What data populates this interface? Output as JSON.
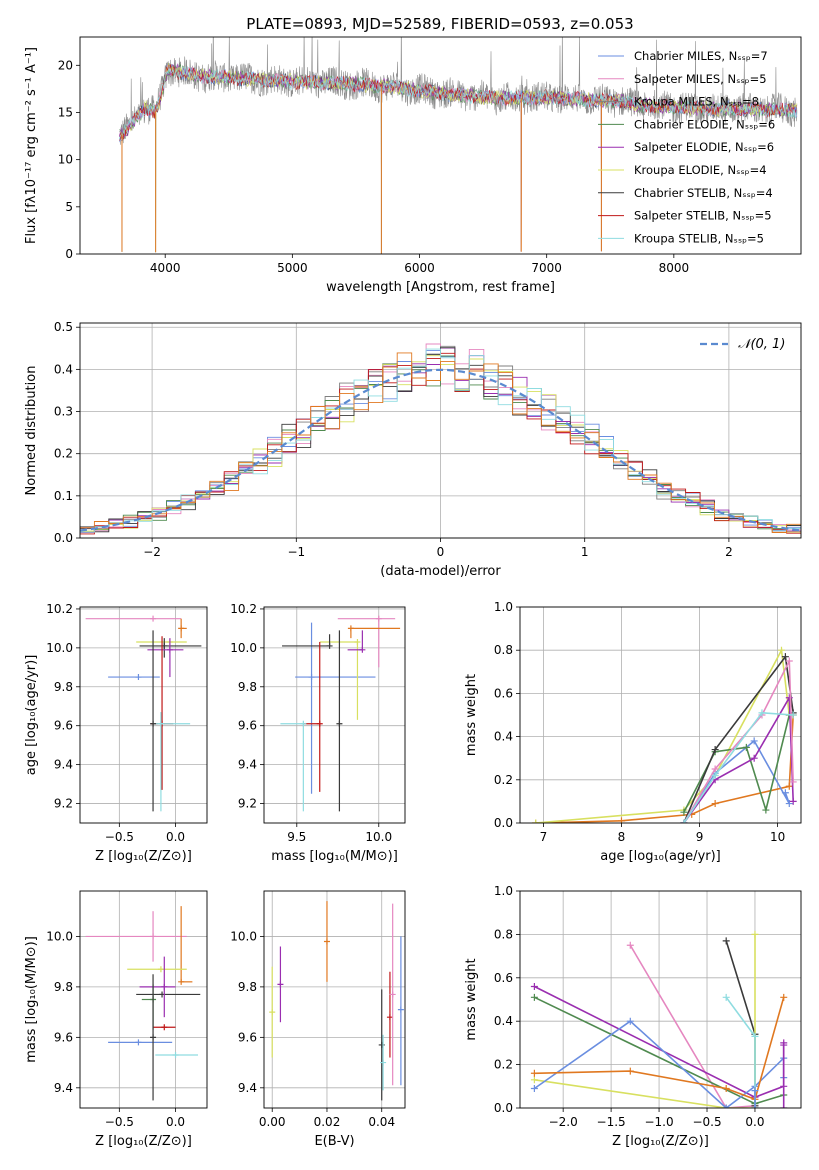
{
  "figure_title": "PLATE=0893, MJD=52589, FIBERID=0593, z=0.053",
  "colors": [
    "#6a8ee0",
    "#e587c0",
    "#7f7f7f",
    "#4f8a4f",
    "#9a2eb0",
    "#d8e060",
    "#3a3a3a",
    "#c01818",
    "#8fdce0",
    "#e07820",
    "#5a5a5a",
    "#3aa6b0"
  ],
  "chart_data": [
    {
      "id": "spectrum",
      "type": "line",
      "xlabel": "wavelength [Angstrom, rest frame]",
      "ylabel": "Flux [fλ10⁻¹⁷ erg cm⁻² s⁻¹ A⁻¹]",
      "xlim": [
        3330,
        9000
      ],
      "ylim": [
        0,
        23
      ],
      "xticks": [
        4000,
        5000,
        6000,
        7000,
        8000
      ],
      "yticks": [
        0,
        5,
        10,
        15,
        20
      ],
      "grid": false,
      "legend_position": "top-right",
      "continuum": {
        "x": [
          3640,
          3700,
          3780,
          3850,
          3920,
          3960,
          4020,
          4100,
          4300,
          4600,
          5000,
          5400,
          5800,
          6200,
          6600,
          7000,
          7400,
          7600,
          7700,
          7900,
          8100,
          8300,
          8500,
          8700,
          8970
        ],
        "y": [
          12.5,
          13.2,
          14.5,
          15.5,
          15.0,
          16.5,
          19.6,
          19.3,
          18.8,
          18.6,
          18.3,
          18.1,
          17.7,
          17.0,
          16.5,
          16.6,
          16.3,
          16.2,
          15.8,
          15.7,
          15.5,
          15.4,
          15.4,
          15.3,
          15.2
        ]
      },
      "absorption_lines": [
        {
          "x": 3660,
          "depth": 12.5
        },
        {
          "x": 3925,
          "depth": 15.0
        },
        {
          "x": 5700,
          "depth": 17.8
        },
        {
          "x": 6800,
          "depth": 16.3
        },
        {
          "x": 7430,
          "depth": 16.0
        }
      ],
      "series": [
        {
          "name": "Chabrier MILES, Nₛₛₚ=7",
          "color": "#6a8ee0"
        },
        {
          "name": "Salpeter MILES, Nₛₛₚ=5",
          "color": "#e587c0"
        },
        {
          "name": "Kroupa MILES, Nₛₛₚ=8",
          "color": "#7f7f7f"
        },
        {
          "name": "Chabrier ELODIE, Nₛₛₚ=6",
          "color": "#4f8a4f"
        },
        {
          "name": "Salpeter ELODIE, Nₛₛₚ=6",
          "color": "#9a2eb0"
        },
        {
          "name": "Kroupa ELODIE, Nₛₛₚ=4",
          "color": "#d8e060"
        },
        {
          "name": "Chabrier STELIB, Nₛₛₚ=4",
          "color": "#3a3a3a"
        },
        {
          "name": "Salpeter STELIB, Nₛₛₚ=5",
          "color": "#c01818"
        },
        {
          "name": "Kroupa STELIB, Nₛₛₚ=5",
          "color": "#8fdce0"
        }
      ]
    },
    {
      "id": "residual-histogram",
      "type": "histogram",
      "xlabel": "(data-model)/error",
      "ylabel": "Normed distribution",
      "xlim": [
        -2.5,
        2.5
      ],
      "ylim": [
        0,
        0.51
      ],
      "xticks": [
        -2,
        -1,
        0,
        1,
        2
      ],
      "yticks": [
        0.0,
        0.1,
        0.2,
        0.3,
        0.4,
        0.5
      ],
      "grid": true,
      "legend_position": "top-right",
      "legend": "𝒩(0, 1)",
      "bin_width": 0.1,
      "reference_curve": {
        "name": "N(0,1)",
        "mean": 0,
        "sigma": 1,
        "color": "#5a8ad0"
      },
      "histogram_colors": [
        "#6a8ee0",
        "#e587c0",
        "#7f7f7f",
        "#4f8a4f",
        "#9a2eb0",
        "#d8e060",
        "#3a3a3a",
        "#c01818",
        "#8fdce0",
        "#e07820"
      ]
    },
    {
      "id": "age-vs-Z",
      "type": "errorbar",
      "xlabel": "Z [log₁₀(Z/Z⊙)]",
      "ylabel": "age  [log₁₀(age/yr)]",
      "xlim": [
        -0.85,
        0.28
      ],
      "ylim": [
        9.1,
        10.21
      ],
      "xticks": [
        -0.5,
        0.0
      ],
      "yticks": [
        9.2,
        9.4,
        9.6,
        9.8,
        10.0,
        10.2
      ],
      "grid": true,
      "points": [
        {
          "x": -0.33,
          "y": 9.85,
          "xerr": [
            0.27,
            0.19
          ],
          "yerr": [
            0.0,
            0.0
          ],
          "color": "#6a8ee0"
        },
        {
          "x": -0.2,
          "y": 10.15,
          "xerr": [
            0.6,
            0.25
          ],
          "yerr": [
            0.0,
            0.0
          ],
          "color": "#e587c0"
        },
        {
          "x": 0.05,
          "y": 10.1,
          "xerr": [
            0.0,
            0.05
          ],
          "yerr": [
            0.05,
            0.05
          ],
          "color": "#e07820"
        },
        {
          "x": -0.05,
          "y": 10.03,
          "xerr": [
            0.3,
            0.15
          ],
          "yerr": [
            0.0,
            0.0
          ],
          "color": "#d8e060"
        },
        {
          "x": -0.1,
          "y": 10.01,
          "xerr": [
            0.22,
            0.33
          ],
          "yerr": [
            0.06,
            0.04
          ],
          "color": "#3a3a3a"
        },
        {
          "x": -0.05,
          "y": 9.99,
          "xerr": [
            0.2,
            0.12
          ],
          "yerr": [
            0.14,
            0.06
          ],
          "color": "#9a2eb0"
        },
        {
          "x": -0.12,
          "y": 9.61,
          "xerr": [
            0.1,
            0.1
          ],
          "yerr": [
            0.34,
            0.45
          ],
          "color": "#c01818"
        },
        {
          "x": -0.13,
          "y": 9.61,
          "xerr": [
            0.07,
            0.26
          ],
          "yerr": [
            0.45,
            0.06
          ],
          "color": "#8fdce0"
        },
        {
          "x": -0.2,
          "y": 9.61,
          "xerr": [
            0.0,
            0.0
          ],
          "yerr": [
            0.45,
            0.48
          ],
          "color": "#3a3a3a"
        }
      ]
    },
    {
      "id": "age-vs-mass",
      "type": "errorbar",
      "xlabel": "mass [log₁₀(M/M⊙)]",
      "ylabel": "",
      "xlim": [
        9.3,
        10.16
      ],
      "ylim": [
        9.1,
        10.21
      ],
      "xticks": [
        9.5,
        10.0
      ],
      "yticks": [
        9.2,
        9.4,
        9.6,
        9.8,
        10.0,
        10.2
      ],
      "grid": true,
      "points": [
        {
          "x": 9.59,
          "y": 9.85,
          "xerr": [
            0.1,
            0.39
          ],
          "yerr": [
            0.6,
            0.28
          ],
          "color": "#6a8ee0"
        },
        {
          "x": 10.0,
          "y": 10.15,
          "xerr": [
            0.25,
            0.1
          ],
          "yerr": [
            0.25,
            0.0
          ],
          "color": "#e587c0"
        },
        {
          "x": 9.83,
          "y": 10.1,
          "xerr": [
            0.0,
            0.3
          ],
          "yerr": [
            0.05,
            0.0
          ],
          "color": "#e07820"
        },
        {
          "x": 9.87,
          "y": 10.03,
          "xerr": [
            0.23,
            0.0
          ],
          "yerr": [
            0.4,
            0.0
          ],
          "color": "#d8e060"
        },
        {
          "x": 9.7,
          "y": 10.01,
          "xerr": [
            0.29,
            0.0
          ],
          "yerr": [
            0.0,
            0.06
          ],
          "color": "#3a3a3a"
        },
        {
          "x": 9.9,
          "y": 9.99,
          "xerr": [
            0.09,
            0.0
          ],
          "yerr": [
            0.0,
            0.1
          ],
          "color": "#9a2eb0"
        },
        {
          "x": 9.64,
          "y": 9.61,
          "xerr": [
            0.1,
            0.0
          ],
          "yerr": [
            0.35,
            0.42
          ],
          "color": "#c01818"
        },
        {
          "x": 9.54,
          "y": 9.61,
          "xerr": [
            0.14,
            0.0
          ],
          "yerr": [
            0.45,
            0.0
          ],
          "color": "#8fdce0"
        },
        {
          "x": 9.76,
          "y": 9.61,
          "xerr": [
            0.0,
            0.0
          ],
          "yerr": [
            0.45,
            0.48
          ],
          "color": "#3a3a3a"
        }
      ]
    },
    {
      "id": "mass-weight-vs-age",
      "type": "line",
      "xlabel": "age  [log₁₀(age/yr)]",
      "ylabel": "mass weight",
      "xlim": [
        6.7,
        10.3
      ],
      "ylim": [
        0.0,
        1.0
      ],
      "xticks": [
        7,
        8,
        9,
        10
      ],
      "yticks": [
        0.0,
        0.2,
        0.4,
        0.6,
        0.8,
        1.0
      ],
      "grid": true,
      "series": [
        {
          "color": "#e07820",
          "x": [
            6.9,
            8.0,
            8.9,
            9.2,
            10.15,
            10.2
          ],
          "y": [
            0.0,
            0.01,
            0.04,
            0.09,
            0.17,
            0.5
          ]
        },
        {
          "color": "#d8e060",
          "x": [
            6.9,
            8.8,
            9.2,
            10.05,
            10.15
          ],
          "y": [
            0.0,
            0.06,
            0.22,
            0.8,
            0.5
          ]
        },
        {
          "color": "#6a8ee0",
          "x": [
            8.8,
            9.2,
            9.7,
            10.15,
            10.1
          ],
          "y": [
            0.0,
            0.23,
            0.38,
            0.09,
            0.14
          ]
        },
        {
          "color": "#4f8a4f",
          "x": [
            8.8,
            9.2,
            9.6,
            9.85,
            10.15
          ],
          "y": [
            0.05,
            0.33,
            0.35,
            0.06,
            0.5
          ]
        },
        {
          "color": "#3a3a3a",
          "x": [
            8.8,
            9.2,
            10.1,
            10.2
          ],
          "y": [
            0.0,
            0.34,
            0.77,
            0.51
          ]
        },
        {
          "color": "#9a2eb0",
          "x": [
            8.8,
            9.2,
            9.7,
            10.15,
            10.2
          ],
          "y": [
            0.0,
            0.2,
            0.3,
            0.58,
            0.1
          ]
        },
        {
          "color": "#e587c0",
          "x": [
            8.8,
            9.2,
            9.8,
            10.15,
            10.2
          ],
          "y": [
            0.0,
            0.25,
            0.5,
            0.75,
            0.19
          ]
        },
        {
          "color": "#8fdce0",
          "x": [
            8.8,
            9.2,
            9.8,
            10.2
          ],
          "y": [
            0.0,
            0.22,
            0.51,
            0.5
          ]
        }
      ]
    },
    {
      "id": "mass-vs-Z",
      "type": "errorbar",
      "xlabel": "Z [log₁₀(Z/Z⊙)]",
      "ylabel": "mass [log₁₀(M/M⊙)]",
      "xlim": [
        -0.85,
        0.28
      ],
      "ylim": [
        9.32,
        10.18
      ],
      "xticks": [
        -0.5,
        0.0
      ],
      "yticks": [
        9.4,
        9.6,
        9.8,
        10.0
      ],
      "grid": true,
      "points": [
        {
          "x": -0.2,
          "y": 10.0,
          "xerr": [
            0.6,
            0.3
          ],
          "yerr": [
            0.1,
            0.1
          ],
          "color": "#e587c0"
        },
        {
          "x": 0.05,
          "y": 9.82,
          "xerr": [
            0.0,
            0.1
          ],
          "yerr": [
            0.0,
            0.3
          ],
          "color": "#e07820"
        },
        {
          "x": -0.13,
          "y": 9.87,
          "xerr": [
            0.3,
            0.23
          ],
          "yerr": [
            0.0,
            0.0
          ],
          "color": "#d8e060"
        },
        {
          "x": -0.12,
          "y": 9.77,
          "xerr": [
            0.23,
            0.34
          ],
          "yerr": [
            0.0,
            0.0
          ],
          "color": "#3a3a3a"
        },
        {
          "x": -0.1,
          "y": 9.8,
          "xerr": [
            0.22,
            0.1
          ],
          "yerr": [
            0.12,
            0.12
          ],
          "color": "#9a2eb0"
        },
        {
          "x": -0.2,
          "y": 9.75,
          "xerr": [
            0.1,
            0.0
          ],
          "yerr": [
            0.12,
            0.06
          ],
          "color": "#4f8a4f"
        },
        {
          "x": -0.1,
          "y": 9.64,
          "xerr": [
            0.1,
            0.1
          ],
          "yerr": [
            0.0,
            0.0
          ],
          "color": "#c01818"
        },
        {
          "x": -0.33,
          "y": 9.58,
          "xerr": [
            0.27,
            0.3
          ],
          "yerr": [
            0.0,
            0.0
          ],
          "color": "#6a8ee0"
        },
        {
          "x": 0.0,
          "y": 9.53,
          "xerr": [
            0.18,
            0.2
          ],
          "yerr": [
            0.0,
            0.0
          ],
          "color": "#8fdce0"
        },
        {
          "x": -0.2,
          "y": 9.6,
          "xerr": [
            0.0,
            0.0
          ],
          "yerr": [
            0.25,
            0.25
          ],
          "color": "#3a3a3a"
        }
      ]
    },
    {
      "id": "mass-vs-EBV",
      "type": "errorbar",
      "xlabel": "E(B-V)",
      "ylabel": "",
      "xlim": [
        -0.003,
        0.0485
      ],
      "ylim": [
        9.32,
        10.18
      ],
      "xticks": [
        0.0,
        0.02,
        0.04
      ],
      "yticks": [
        9.4,
        9.6,
        9.8,
        10.0
      ],
      "grid": true,
      "points": [
        {
          "x": 0.0,
          "y": 9.7,
          "xerr": [
            0.0,
            0.0
          ],
          "yerr": [
            0.18,
            0.18
          ],
          "color": "#d8e060"
        },
        {
          "x": 0.003,
          "y": 9.81,
          "xerr": [
            0.0,
            0.0
          ],
          "yerr": [
            0.15,
            0.15
          ],
          "color": "#9a2eb0"
        },
        {
          "x": 0.02,
          "y": 9.98,
          "xerr": [
            0.0,
            0.0
          ],
          "yerr": [
            0.16,
            0.16
          ],
          "color": "#e07820"
        },
        {
          "x": 0.04,
          "y": 9.57,
          "xerr": [
            0.0,
            0.0
          ],
          "yerr": [
            0.22,
            0.22
          ],
          "color": "#3a3a3a"
        },
        {
          "x": 0.0405,
          "y": 9.5,
          "xerr": [
            0.0,
            0.0
          ],
          "yerr": [
            0.11,
            0.11
          ],
          "color": "#8fdce0"
        },
        {
          "x": 0.043,
          "y": 9.68,
          "xerr": [
            0.0,
            0.0
          ],
          "yerr": [
            0.16,
            0.18
          ],
          "color": "#c01818"
        },
        {
          "x": 0.044,
          "y": 9.77,
          "xerr": [
            0.0,
            0.0
          ],
          "yerr": [
            0.36,
            0.36
          ],
          "color": "#e587c0"
        },
        {
          "x": 0.047,
          "y": 9.71,
          "xerr": [
            0.0,
            0.0
          ],
          "yerr": [
            0.3,
            0.29
          ],
          "color": "#6a8ee0"
        }
      ]
    },
    {
      "id": "mass-weight-vs-Z",
      "type": "line",
      "xlabel": "Z [log₁₀(Z/Z⊙)]",
      "ylabel": "mass weight",
      "xlim": [
        -2.45,
        0.48
      ],
      "ylim": [
        0.0,
        1.0
      ],
      "xticks": [
        -2.0,
        -1.5,
        -1.0,
        -0.5,
        0.0
      ],
      "yticks": [
        0.0,
        0.2,
        0.4,
        0.6,
        0.8,
        1.0
      ],
      "grid": true,
      "series": [
        {
          "color": "#e587c0",
          "x": [
            -1.3,
            -0.3,
            0.0
          ],
          "y": [
            0.75,
            0.0,
            0.01
          ]
        },
        {
          "color": "#3a3a3a",
          "x": [
            -0.3,
            0.0,
            0.0
          ],
          "y": [
            0.77,
            0.34,
            0.01
          ]
        },
        {
          "color": "#d8e060",
          "x": [
            -2.3,
            -0.3,
            0.0,
            0.0
          ],
          "y": [
            0.13,
            0.0,
            0.0,
            0.8
          ]
        },
        {
          "color": "#9a2eb0",
          "x": [
            -2.3,
            0.0,
            0.3,
            0.3
          ],
          "y": [
            0.56,
            0.05,
            0.1,
            0.3
          ]
        },
        {
          "color": "#4f8a4f",
          "x": [
            -2.3,
            0.0,
            0.3
          ],
          "y": [
            0.51,
            0.02,
            0.06
          ]
        },
        {
          "color": "#6a8ee0",
          "x": [
            -2.3,
            -1.3,
            -0.3,
            0.0,
            0.3,
            0.3
          ],
          "y": [
            0.09,
            0.4,
            0.0,
            0.1,
            0.23,
            0.14
          ]
        },
        {
          "color": "#e07820",
          "x": [
            -2.3,
            -1.3,
            -0.3,
            0.0,
            0.3
          ],
          "y": [
            0.16,
            0.17,
            0.09,
            0.04,
            0.51
          ]
        },
        {
          "color": "#8fdce0",
          "x": [
            -0.3,
            0.0,
            0.0
          ],
          "y": [
            0.51,
            0.33,
            0.0
          ]
        },
        {
          "color": "#6a8ee0",
          "x": [
            0.0,
            0.0
          ],
          "y": [
            0.0,
            0.08
          ]
        },
        {
          "color": "#9a2eb0",
          "x": [
            0.3,
            0.3
          ],
          "y": [
            0.0,
            0.29
          ]
        }
      ]
    }
  ]
}
